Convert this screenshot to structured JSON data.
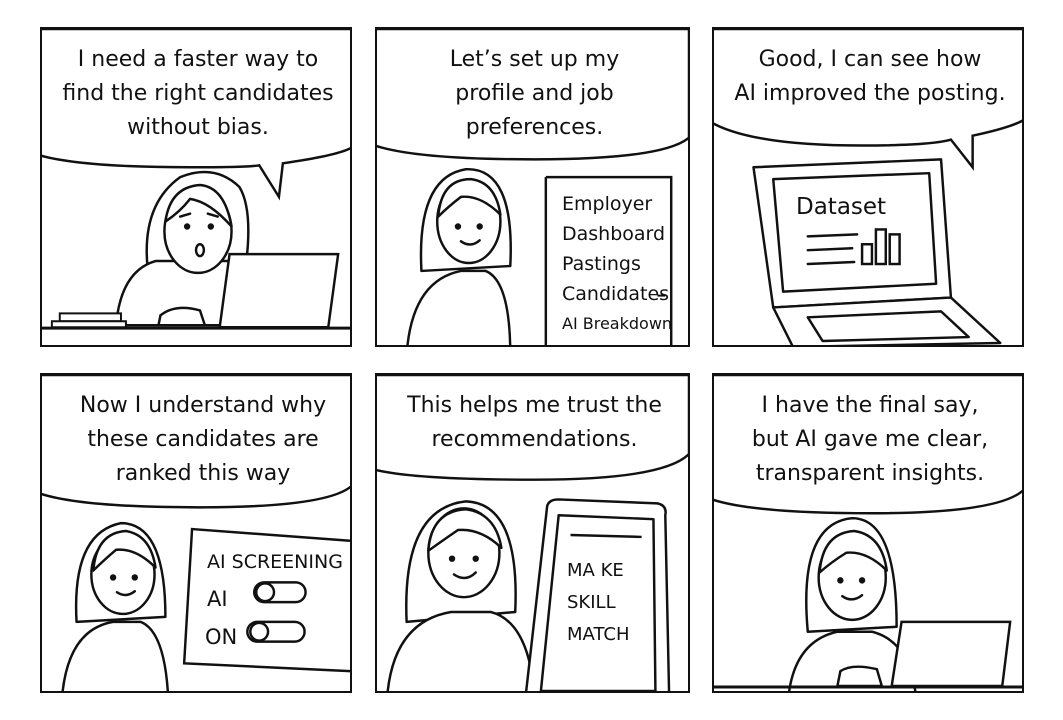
{
  "comic": {
    "panels": [
      {
        "caption": "I need a faster way to\nfind the right candidates\nwithout bias."
      },
      {
        "caption": "Let’s set up my\nprofile and job\npreferences.",
        "sign_lines": [
          "Employer",
          "Dashboard",
          "Pastings",
          "Candidates",
          "AI Breakdown"
        ]
      },
      {
        "caption": "Good, I can see how\nAI improved the posting.",
        "screen_title": "Dataset"
      },
      {
        "caption": "Now I understand why\nthese candidates are\nranked this way",
        "panel_title": "AI SCREENING",
        "toggle_1_label": "AI",
        "toggle_2_label": "ON"
      },
      {
        "caption": "This helps me trust the\nrecommendations.",
        "phone_text": [
          "MA KE",
          "SKILL",
          "MATCH"
        ]
      },
      {
        "caption": "I have the final say,\nbut AI gave me clear,\ntransparent insights."
      }
    ]
  }
}
